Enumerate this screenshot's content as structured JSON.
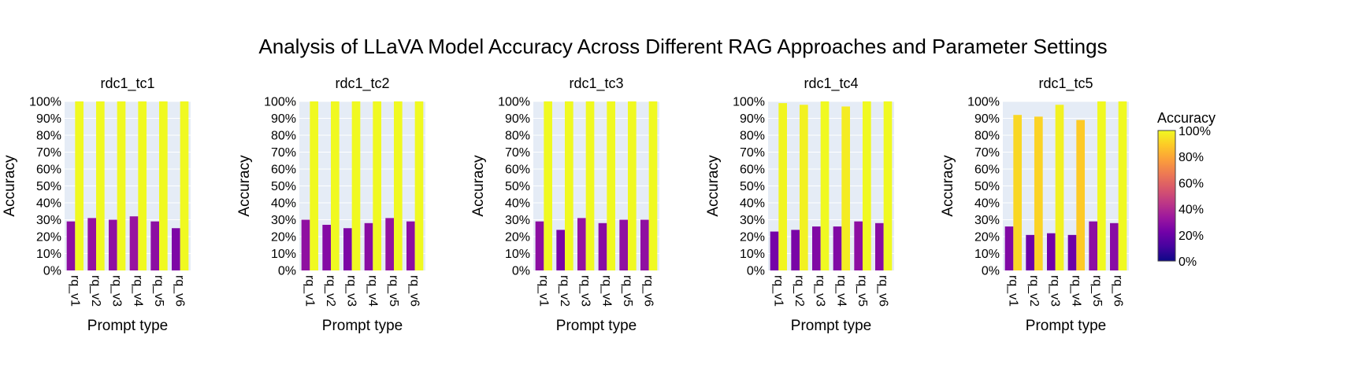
{
  "title": "Analysis of LLaVA Model Accuracy Across Different RAG Approaches and Parameter Settings",
  "colorbar": {
    "title": "Accuracy",
    "tick_labels": [
      "100%",
      "80%",
      "60%",
      "40%",
      "20%",
      "0%"
    ],
    "tick_values": [
      1.0,
      0.8,
      0.6,
      0.4,
      0.2,
      0.0
    ],
    "colorscale": [
      "#0d0887",
      "#46039f",
      "#7201a8",
      "#9c179e",
      "#bd3786",
      "#d8576b",
      "#ed7953",
      "#fb9f3a",
      "#fdca26",
      "#f0f921"
    ]
  },
  "colors": {
    "plot_background": "#e5ecf6",
    "grid": "#ffffff",
    "text": "#000000"
  },
  "chart_data": [
    {
      "type": "bar",
      "title": "rdc1_tc1",
      "xlabel": "Prompt type",
      "ylabel": "Accuracy",
      "ylim": [
        0,
        1
      ],
      "y_tick_labels": [
        "0%",
        "10%",
        "20%",
        "30%",
        "40%",
        "50%",
        "60%",
        "70%",
        "80%",
        "90%",
        "100%"
      ],
      "categories": [
        "rq_v1",
        "rq_v2",
        "rq_v3",
        "rq_v4",
        "rq_v5",
        "rq_v6"
      ],
      "series": [
        {
          "values": [
            0.29,
            0.31,
            0.3,
            0.32,
            0.29,
            0.25
          ]
        },
        {
          "values": [
            1.0,
            1.0,
            1.0,
            1.0,
            1.0,
            1.0
          ]
        }
      ]
    },
    {
      "type": "bar",
      "title": "rdc1_tc2",
      "xlabel": "Prompt type",
      "ylabel": "Accuracy",
      "ylim": [
        0,
        1
      ],
      "y_tick_labels": [
        "0%",
        "10%",
        "20%",
        "30%",
        "40%",
        "50%",
        "60%",
        "70%",
        "80%",
        "90%",
        "100%"
      ],
      "categories": [
        "rq_v1",
        "rq_v2",
        "rq_v3",
        "rq_v4",
        "rq_v5",
        "rq_v6"
      ],
      "series": [
        {
          "values": [
            0.3,
            0.27,
            0.25,
            0.28,
            0.31,
            0.29
          ]
        },
        {
          "values": [
            1.0,
            1.0,
            1.0,
            1.0,
            1.0,
            1.0
          ]
        }
      ]
    },
    {
      "type": "bar",
      "title": "rdc1_tc3",
      "xlabel": "Prompt type",
      "ylabel": "Accuracy",
      "ylim": [
        0,
        1
      ],
      "y_tick_labels": [
        "0%",
        "10%",
        "20%",
        "30%",
        "40%",
        "50%",
        "60%",
        "70%",
        "80%",
        "90%",
        "100%"
      ],
      "categories": [
        "rq_v1",
        "rq_v2",
        "rq_v3",
        "rq_v4",
        "rq_v5",
        "rq_v6"
      ],
      "series": [
        {
          "values": [
            0.29,
            0.24,
            0.31,
            0.28,
            0.3,
            0.3
          ]
        },
        {
          "values": [
            1.0,
            1.0,
            1.0,
            1.0,
            1.0,
            1.0
          ]
        }
      ]
    },
    {
      "type": "bar",
      "title": "rdc1_tc4",
      "xlabel": "Prompt type",
      "ylabel": "Accuracy",
      "ylim": [
        0,
        1
      ],
      "y_tick_labels": [
        "0%",
        "10%",
        "20%",
        "30%",
        "40%",
        "50%",
        "60%",
        "70%",
        "80%",
        "90%",
        "100%"
      ],
      "categories": [
        "rq_v1",
        "rq_v2",
        "rq_v3",
        "rq_v4",
        "rq_v5",
        "rq_v6"
      ],
      "series": [
        {
          "values": [
            0.23,
            0.24,
            0.26,
            0.26,
            0.29,
            0.28
          ]
        },
        {
          "values": [
            0.99,
            0.98,
            1.0,
            0.97,
            1.0,
            1.0
          ]
        }
      ]
    },
    {
      "type": "bar",
      "title": "rdc1_tc5",
      "xlabel": "Prompt type",
      "ylabel": "Accuracy",
      "ylim": [
        0,
        1
      ],
      "y_tick_labels": [
        "0%",
        "10%",
        "20%",
        "30%",
        "40%",
        "50%",
        "60%",
        "70%",
        "80%",
        "90%",
        "100%"
      ],
      "categories": [
        "rq_v1",
        "rq_v2",
        "rq_v3",
        "rq_v4",
        "rq_v5",
        "rq_v6"
      ],
      "series": [
        {
          "values": [
            0.26,
            0.21,
            0.22,
            0.21,
            0.29,
            0.28
          ]
        },
        {
          "values": [
            0.92,
            0.91,
            0.98,
            0.89,
            1.0,
            1.0
          ]
        }
      ]
    }
  ]
}
